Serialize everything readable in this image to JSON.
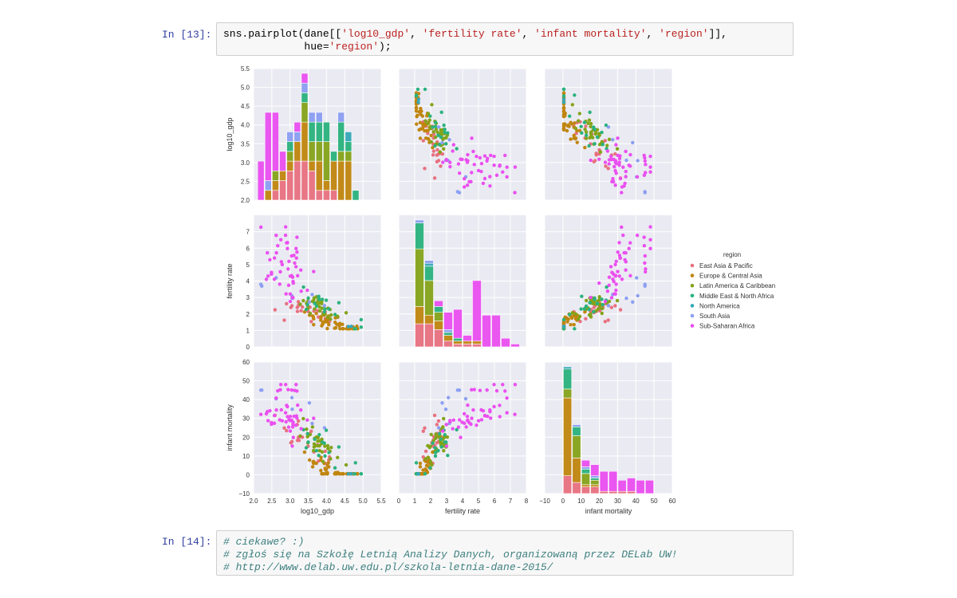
{
  "cells": [
    {
      "prompt": "In [13]:",
      "lines": [
        [
          {
            "t": "sns.pairplot(dane[[",
            "c": "plain"
          },
          {
            "t": "'log10_gdp'",
            "c": "str"
          },
          {
            "t": ", ",
            "c": "plain"
          },
          {
            "t": "'fertility rate'",
            "c": "str"
          },
          {
            "t": ", ",
            "c": "plain"
          },
          {
            "t": "'infant mortality'",
            "c": "str"
          },
          {
            "t": ", ",
            "c": "plain"
          },
          {
            "t": "'region'",
            "c": "str"
          },
          {
            "t": "]],",
            "c": "plain"
          }
        ],
        [
          {
            "t": "             hue=",
            "c": "plain"
          },
          {
            "t": "'region'",
            "c": "str"
          },
          {
            "t": ");",
            "c": "plain"
          }
        ]
      ]
    },
    {
      "prompt": "In [14]:",
      "lines": [
        [
          {
            "t": "# ciekawe? :)",
            "c": "com"
          }
        ],
        [
          {
            "t": "# zgłoś się na Szkołę Letnią Analizy Danych, organizowaną przez DELab UW!",
            "c": "com"
          }
        ],
        [
          {
            "t": "# http://www.delab.uw.edu.pl/szkola-letnia-dane-2015/",
            "c": "com"
          }
        ]
      ]
    }
  ],
  "chart_data": {
    "type": "pairplot",
    "variables": [
      "log10_gdp",
      "fertility rate",
      "infant mortality"
    ],
    "axis_labels": {
      "x": [
        "log10_gdp",
        "fertility rate",
        "infant mortality"
      ],
      "y": [
        "log10_gdp",
        "fertility rate",
        "infant mortality"
      ]
    },
    "ranges": {
      "log10_gdp": [
        2.0,
        5.5
      ],
      "fertility rate": [
        0,
        8
      ],
      "infant mortality": [
        -10,
        60
      ]
    },
    "ticks": {
      "log10_gdp": [
        "2.0",
        "2.5",
        "3.0",
        "3.5",
        "4.0",
        "4.5",
        "5.0",
        "5.5"
      ],
      "fertility rate": [
        "0",
        "1",
        "2",
        "3",
        "4",
        "5",
        "6",
        "7",
        "8"
      ],
      "infant mortality": [
        "−10",
        "0",
        "10",
        "20",
        "30",
        "40",
        "50",
        "60"
      ]
    },
    "legend": {
      "title": "region",
      "position": "right",
      "entries": [
        {
          "name": "East Asia & Pacific",
          "color": "#e8707f"
        },
        {
          "name": "Europe & Central Asia",
          "color": "#c0850e"
        },
        {
          "name": "Latin America & Caribbean",
          "color": "#84a319"
        },
        {
          "name": "Middle East & North Africa",
          "color": "#2ab27e"
        },
        {
          "name": "North America",
          "color": "#35a7b8"
        },
        {
          "name": "South Asia",
          "color": "#8b9ff2"
        },
        {
          "name": "Sub-Saharan Africa",
          "color": "#ea4ff0"
        }
      ]
    },
    "grid": true,
    "background": "#eaeaf2",
    "histograms": {
      "log10_gdp": {
        "bin_edges": [
          2.1,
          2.3,
          2.5,
          2.7,
          2.9,
          3.1,
          3.3,
          3.5,
          3.7,
          3.9,
          4.1,
          4.3,
          4.5,
          4.7,
          4.9
        ],
        "counts": [
          [
            0,
            0,
            1,
            2,
            3,
            4,
            4,
            3,
            1,
            1,
            1,
            0,
            0,
            0
          ],
          [
            0,
            1,
            1,
            1,
            1,
            2,
            4,
            1,
            3,
            1,
            3,
            4,
            4,
            0
          ],
          [
            0,
            0,
            1,
            0,
            1,
            0,
            2,
            2,
            2,
            4,
            0,
            1,
            1,
            0
          ],
          [
            0,
            0,
            0,
            0,
            1,
            0,
            1,
            2,
            2,
            2,
            1,
            3,
            1,
            1
          ],
          [
            0,
            0,
            0,
            0,
            0,
            0,
            0,
            0,
            0,
            0,
            0,
            0,
            1,
            0
          ],
          [
            0,
            1,
            0,
            0,
            1,
            1,
            1,
            1,
            1,
            0,
            0,
            1,
            0,
            0
          ],
          [
            4,
            7,
            6,
            2,
            0,
            1,
            1,
            0,
            0,
            0,
            0,
            0,
            0,
            0
          ]
        ]
      },
      "fertility rate": {
        "bin_edges": [
          1.0,
          1.6,
          2.2,
          2.8,
          3.4,
          4.0,
          4.6,
          5.2,
          5.8,
          6.4,
          7.0,
          7.6
        ],
        "counts": [
          [
            8,
            8,
            6,
            2,
            1,
            1,
            1,
            0,
            0,
            0,
            0
          ],
          [
            6,
            3,
            3,
            2,
            1,
            1,
            1,
            0,
            0,
            0,
            0
          ],
          [
            20,
            12,
            3,
            0,
            0,
            0,
            0,
            0,
            0,
            0,
            0
          ],
          [
            9,
            5,
            2,
            1,
            1,
            0,
            0,
            0,
            0,
            0,
            0
          ],
          [
            0,
            1,
            0,
            0,
            0,
            0,
            0,
            0,
            0,
            0,
            0
          ],
          [
            1,
            1,
            0,
            1,
            0,
            0,
            0,
            0,
            0,
            0,
            0
          ],
          [
            0,
            0,
            2,
            6,
            10,
            2,
            21,
            11,
            11,
            3,
            1
          ]
        ]
      },
      "infant mortality": {
        "bin_edges": [
          0,
          5,
          10,
          15,
          20,
          25,
          30,
          35,
          40,
          45,
          50
        ],
        "counts": [
          [
            8,
            5,
            3,
            3,
            1,
            1,
            1,
            1,
            0,
            0
          ],
          [
            35,
            11,
            1,
            1,
            0,
            0,
            0,
            0,
            0,
            0
          ],
          [
            4,
            10,
            5,
            2,
            0,
            0,
            0,
            0,
            0,
            0
          ],
          [
            9,
            4,
            2,
            1,
            0,
            0,
            0,
            0,
            0,
            0
          ],
          [
            1,
            0,
            0,
            0,
            0,
            0,
            0,
            0,
            0,
            0
          ],
          [
            0,
            1,
            1,
            1,
            0,
            0,
            0,
            0,
            0,
            0
          ],
          [
            0,
            0,
            3,
            5,
            9,
            9,
            5,
            6,
            6,
            6
          ]
        ]
      }
    }
  }
}
